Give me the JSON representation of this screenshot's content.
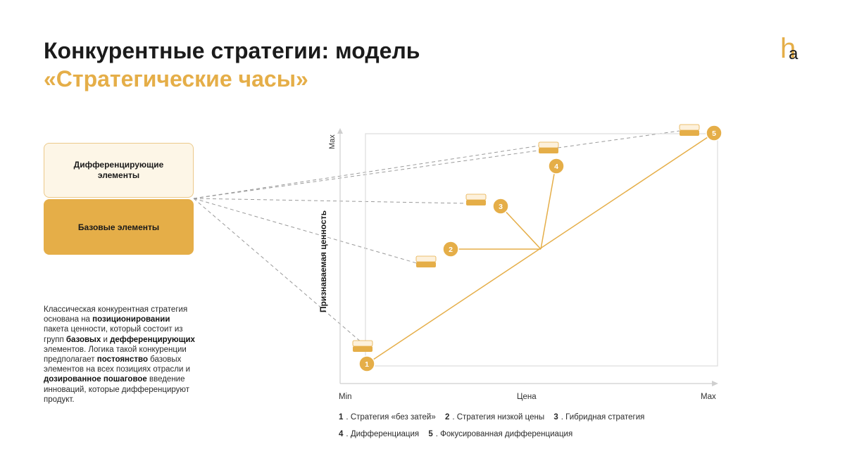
{
  "title": {
    "line1": "Конкурентные стратегии: модель",
    "line2": "«Стратегические часы»"
  },
  "logo": {
    "letter_h": "h",
    "letter_a": "a",
    "colors": {
      "h": "#e5ae48",
      "a": "#1b1b1b"
    }
  },
  "boxes": {
    "differentiating": "Дифференцирующие элементы",
    "base": "Базовые элементы"
  },
  "description": [
    {
      "text": "Классическая конкурентная стратегия основана на ",
      "bold": false
    },
    {
      "text": "позиционировании",
      "bold": true
    },
    {
      "text": " пакета ценности, который состоит из групп ",
      "bold": false
    },
    {
      "text": "базовых",
      "bold": true
    },
    {
      "text": " и ",
      "bold": false
    },
    {
      "text": "дефференцирующих",
      "bold": true
    },
    {
      "text": " элементов. Логика такой конкуренции предполагает ",
      "bold": false
    },
    {
      "text": "постоянство",
      "bold": true
    },
    {
      "text": " базовых элементов на всех позициях отрасли и ",
      "bold": false
    },
    {
      "text": "дозированное пошаговое",
      "bold": true
    },
    {
      "text": " введение инноваций, которые дифференцируют продукт.",
      "bold": false
    }
  ],
  "axes": {
    "y_label": "Признаваемая ценность",
    "y_max": "Max",
    "x_label": "Цена",
    "x_min": "Min",
    "x_max": "Max"
  },
  "strategies": [
    {
      "num": "1",
      "name": "Стратегия «без затей»"
    },
    {
      "num": "2",
      "name": "Стратегия низкой цены"
    },
    {
      "num": "3",
      "name": "Гибридная стратегия"
    },
    {
      "num": "4",
      "name": "Дифференциация"
    },
    {
      "num": "5",
      "name": "Фокусированная дифференциация"
    }
  ],
  "colors": {
    "accent": "#e5ae48",
    "accent_light": "#fdf6e7",
    "axis": "#cfcfcf",
    "dashed": "#9a9a9a"
  }
}
